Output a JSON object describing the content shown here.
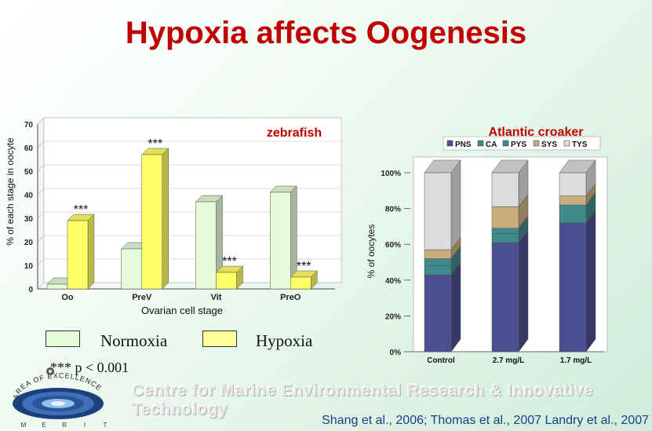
{
  "slide": {
    "title": "Hypoxia affects Oogenesis",
    "legend": {
      "normoxia": "Normoxia",
      "hypoxia": "Hypoxia"
    },
    "p_note": "*** p < 0.001",
    "centre_text": "Centre for Marine Environmental Research & Innovative Technology",
    "citation": "Shang et al., 2006; Thomas et al., 2007 Landry et al., 2007",
    "logo": {
      "ring_text": "AREA OF EXCELLENCE",
      "letters": [
        "M",
        "E",
        "R",
        "I",
        "T"
      ]
    },
    "colors": {
      "title": "#c00000",
      "normoxia": "#e6fbd8",
      "hypoxia": "#ffff66",
      "citation": "#1f3c88"
    }
  },
  "chart_data": [
    {
      "type": "bar",
      "title": "zebrafish",
      "xlabel": "Ovarian cell stage",
      "ylabel": "% of each stage in oocyte",
      "ylim": [
        0,
        70
      ],
      "yticks": [
        0,
        10,
        20,
        30,
        40,
        50,
        60,
        70
      ],
      "categories": [
        "Oo",
        "PreV",
        "Vit",
        "PreO"
      ],
      "series": [
        {
          "name": "Normoxia",
          "values": [
            2,
            17,
            37,
            41
          ],
          "color": "#e6fbd8"
        },
        {
          "name": "Hypoxia",
          "values": [
            29,
            57,
            7,
            5
          ],
          "color": "#ffff66"
        }
      ],
      "annotations": [
        {
          "text": "***",
          "category": "Oo",
          "series": "Hypoxia"
        },
        {
          "text": "***",
          "category": "PreV",
          "series": "Hypoxia"
        },
        {
          "text": "***",
          "category": "Vit",
          "series": "Hypoxia"
        },
        {
          "text": "***",
          "category": "PreO",
          "series": "Hypoxia"
        }
      ],
      "grid": true
    },
    {
      "type": "bar",
      "stacked": true,
      "title": "Atlantic croaker",
      "ylabel": "% of oocytes",
      "ylim": [
        0,
        100
      ],
      "yticks": [
        "0%",
        "20%",
        "40%",
        "60%",
        "80%",
        "100%"
      ],
      "categories": [
        "Control",
        "2.7 mg/L",
        "1.7 mg/L"
      ],
      "legend_position": "top",
      "series": [
        {
          "name": "PNS",
          "values": [
            43,
            61,
            72
          ],
          "color": "#4b4f8f"
        },
        {
          "name": "CA",
          "values": [
            5,
            5,
            0
          ],
          "color": "#3f8a8c"
        },
        {
          "name": "PYS",
          "values": [
            4,
            3,
            10
          ],
          "color": "#3f8a8c"
        },
        {
          "name": "SYS",
          "values": [
            5,
            12,
            5
          ],
          "color": "#c9ad7a"
        },
        {
          "name": "TYS",
          "values": [
            43,
            19,
            13
          ],
          "color": "#dcdcdc"
        }
      ]
    }
  ]
}
